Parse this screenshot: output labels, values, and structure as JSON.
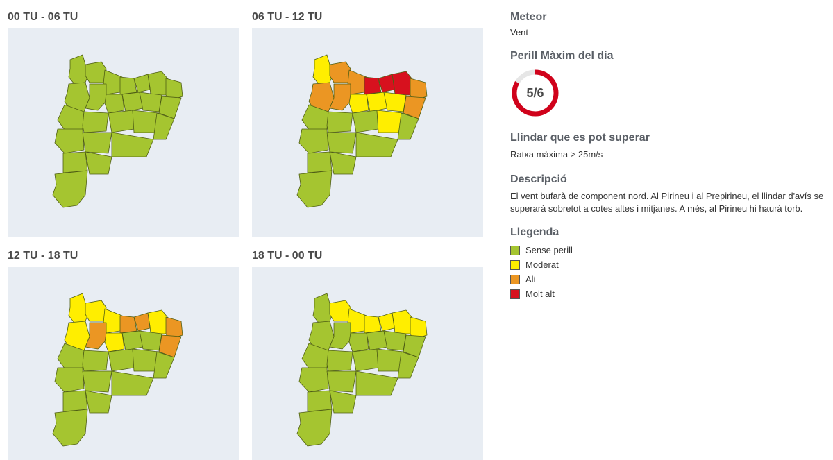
{
  "panels": [
    {
      "title": "00 TU - 06 TU",
      "regions": [
        "green",
        "green",
        "green",
        "green",
        "green",
        "green",
        "green",
        "green",
        "green",
        "green",
        "green",
        "green",
        "green",
        "green",
        "green",
        "green",
        "green",
        "green",
        "green",
        "green",
        "green",
        "green",
        "green",
        "green"
      ]
    },
    {
      "title": "06 TU - 12 TU",
      "regions": [
        "yellow",
        "orange",
        "orange",
        "orange",
        "red",
        "red",
        "red",
        "orange",
        "orange",
        "yellow",
        "yellow",
        "yellow",
        "orange",
        "green",
        "green",
        "green",
        "yellow",
        "green",
        "green",
        "green",
        "green",
        "green",
        "green",
        "green"
      ]
    },
    {
      "title": "12 TU - 18 TU",
      "regions": [
        "yellow",
        "yellow",
        "yellow",
        "yellow",
        "orange",
        "orange",
        "yellow",
        "orange",
        "orange",
        "yellow",
        "green",
        "green",
        "orange",
        "green",
        "green",
        "green",
        "green",
        "green",
        "green",
        "green",
        "green",
        "green",
        "green",
        "green"
      ]
    },
    {
      "title": "18 TU - 00 TU",
      "regions": [
        "green",
        "yellow",
        "yellow",
        "green",
        "yellow",
        "yellow",
        "yellow",
        "yellow",
        "green",
        "green",
        "green",
        "green",
        "green",
        "green",
        "green",
        "green",
        "green",
        "green",
        "green",
        "green",
        "green",
        "green",
        "green",
        "green"
      ]
    }
  ],
  "meteor": {
    "title": "Meteor",
    "value": "Vent"
  },
  "danger": {
    "title": "Perill Màxim del dia",
    "label": "5/6",
    "level": 5,
    "max": 6,
    "color": "#d0021b",
    "track_color": "#e6e6e6"
  },
  "threshold": {
    "title": "Llindar que es pot superar",
    "value": "Ratxa màxima > 25m/s"
  },
  "description": {
    "title": "Descripció",
    "text": "El vent bufarà de component nord. Al Pirineu i al Prepirineu, el llindar d'avís se superarà sobretot a cotes altes i mitjanes. A més, al Pirineu hi haurà torb."
  },
  "legend": {
    "title": "Llegenda",
    "items": [
      {
        "key": "green",
        "label": "Sense perill",
        "color": "#a5c530"
      },
      {
        "key": "yellow",
        "label": "Moderat",
        "color": "#ffee00"
      },
      {
        "key": "orange",
        "label": "Alt",
        "color": "#eb9623"
      },
      {
        "key": "red",
        "label": "Molt alt",
        "color": "#d7111e"
      }
    ]
  }
}
